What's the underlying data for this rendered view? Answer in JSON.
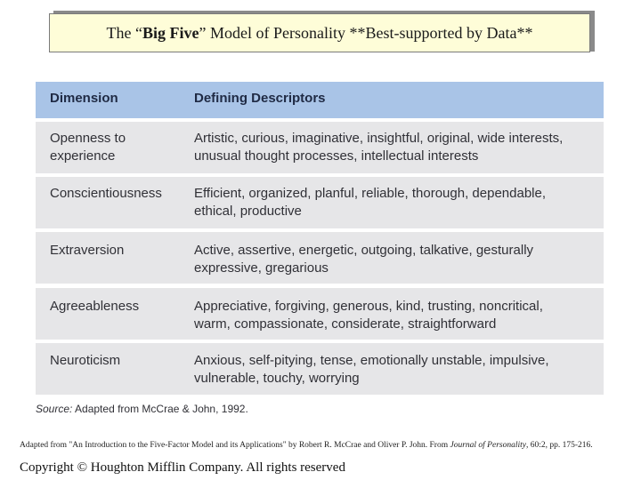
{
  "title": {
    "prefix": "The “",
    "bold": "Big Five",
    "suffix": "” Model of Personality  **Best-supported by Data**"
  },
  "table": {
    "headers": [
      "Dimension",
      "Defining Descriptors"
    ],
    "rows": [
      {
        "dimension": [
          "Openness to",
          "experience"
        ],
        "descriptors": [
          "Artistic, curious, imaginative, insightful, original, wide interests,",
          "unusual thought processes, intellectual interests"
        ]
      },
      {
        "dimension": [
          "Conscientiousness"
        ],
        "descriptors": [
          "Efficient, organized, planful, reliable, thorough, dependable,",
          "ethical, productive"
        ]
      },
      {
        "dimension": [
          "Extraversion"
        ],
        "descriptors": [
          "Active, assertive, energetic, outgoing, talkative, gesturally",
          "expressive, gregarious"
        ]
      },
      {
        "dimension": [
          "Agreeableness"
        ],
        "descriptors": [
          "Appreciative, forgiving, generous, kind, trusting, noncritical,",
          "warm, compassionate, considerate, straightforward"
        ]
      },
      {
        "dimension": [
          "Neuroticism"
        ],
        "descriptors": [
          "Anxious, self-pitying, tense, emotionally unstable, impulsive,",
          "vulnerable, touchy, worrying"
        ]
      }
    ]
  },
  "source": {
    "label": "Source:",
    "text": " Adapted from McCrae & John, 1992."
  },
  "note": {
    "before": "Adapted from \"An Introduction to the Five-Factor Model and its Applications\" by Robert R. McCrae and Oliver P. John. From ",
    "journal": "Journal of Personality",
    "after": ", 60:2, pp. 175-216."
  },
  "copyright": "Copyright © Houghton Mifflin Company.  All rights reserved"
}
